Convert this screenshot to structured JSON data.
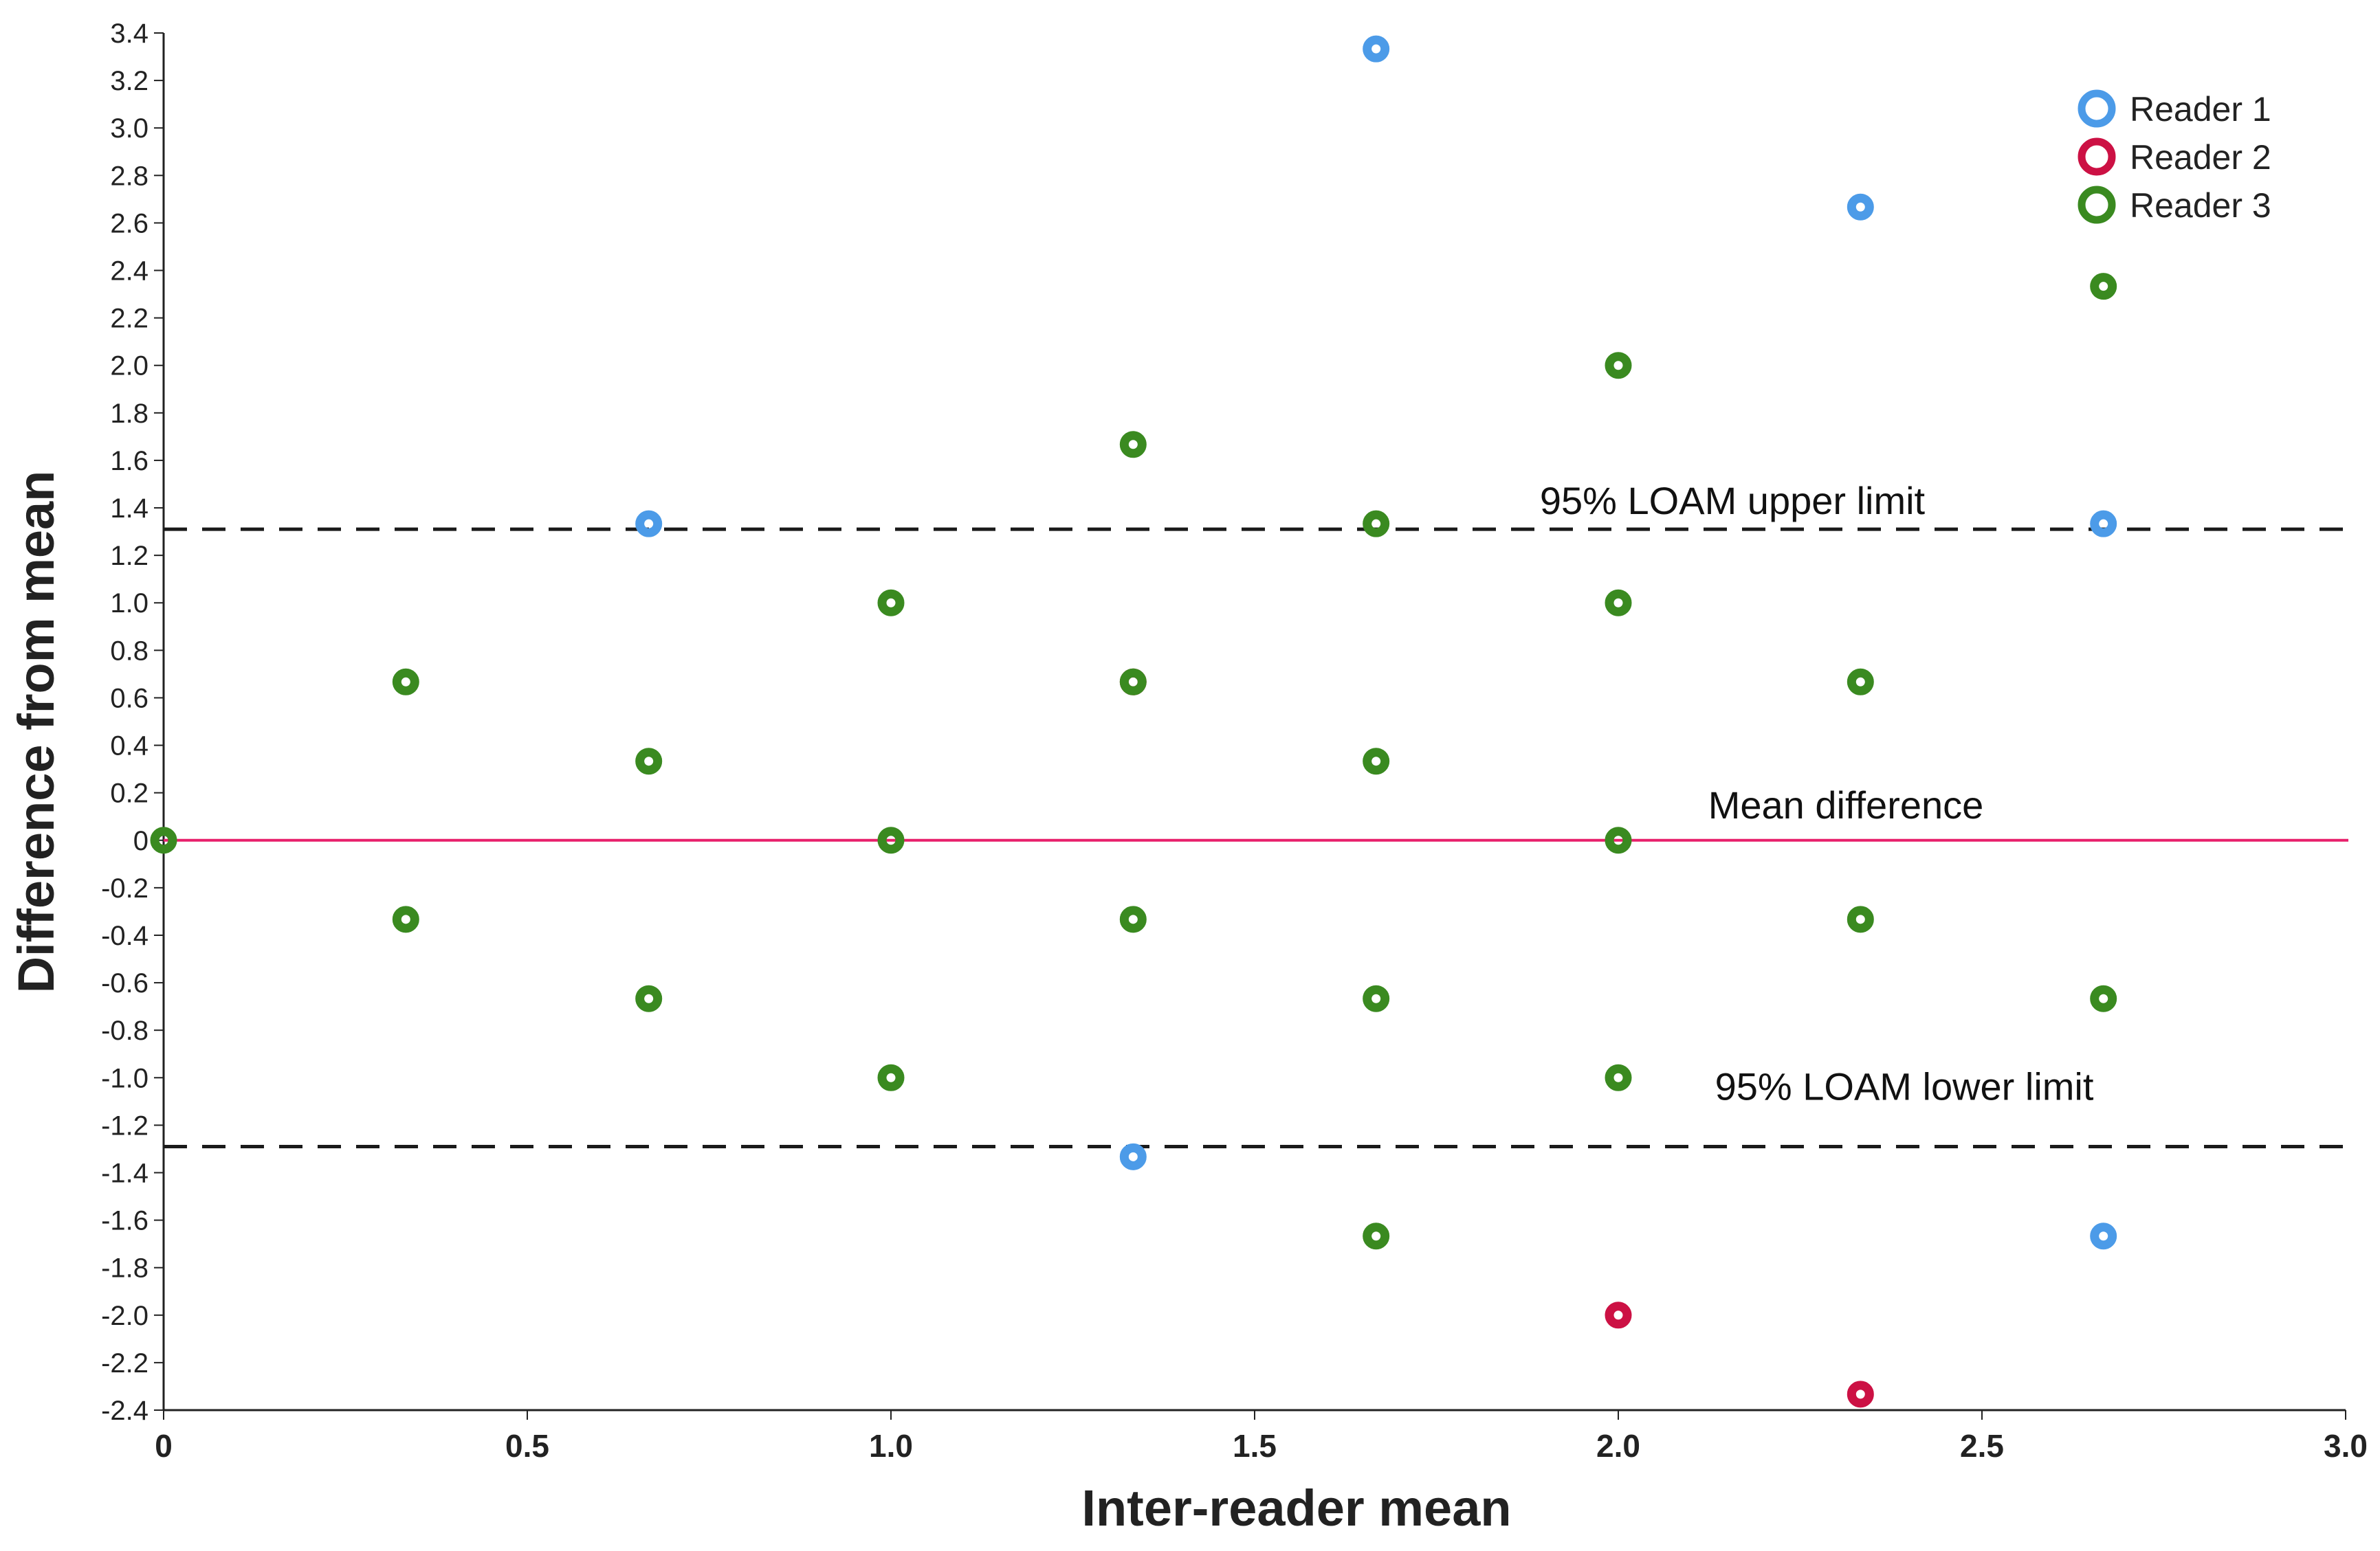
{
  "chart_data": {
    "type": "scatter",
    "title": "",
    "xlabel": "Inter-reader mean",
    "ylabel": "Difference from mean",
    "xlim": [
      0,
      3.0
    ],
    "ylim": [
      -2.4,
      3.4
    ],
    "x_ticks": [
      0,
      0.5,
      1.0,
      1.5,
      2.0,
      2.5,
      3.0
    ],
    "x_tick_labels": [
      "0",
      "0.5",
      "1.0",
      "1.5",
      "2.0",
      "2.5",
      "3.0"
    ],
    "y_ticks": [
      3.4,
      3.2,
      3.0,
      2.8,
      2.6,
      2.4,
      2.2,
      2.0,
      1.8,
      1.6,
      1.4,
      1.2,
      1.0,
      0.8,
      0.6,
      0.4,
      0.2,
      0,
      -0.2,
      -0.4,
      -0.6,
      -0.8,
      -1.0,
      -1.2,
      -1.4,
      -1.6,
      -1.8,
      -2.0,
      -2.2,
      -2.4
    ],
    "y_tick_labels": [
      "3.4",
      "3.2",
      "3.0",
      "2.8",
      "2.6",
      "2.4",
      "2.2",
      "2.0",
      "1.8",
      "1.6",
      "1.4",
      "1.2",
      "1.0",
      "0.8",
      "0.6",
      "0.4",
      "0.2",
      "0",
      "-0.2",
      "-0.4",
      "-0.6",
      "-0.8",
      "-1.0",
      "-1.2",
      "-1.4",
      "-1.6",
      "-1.8",
      "-2.0",
      "-2.2",
      "-2.4"
    ],
    "grid": false,
    "legend_position": "top-right",
    "reference_lines": [
      {
        "name": "upper-limit",
        "label": "95% LOAM upper limit",
        "y": 1.31,
        "style": "dashed",
        "color": "#1a1a1a"
      },
      {
        "name": "mean-difference",
        "label": "Mean difference",
        "y": 0.0,
        "style": "solid",
        "color": "#e8206b"
      },
      {
        "name": "lower-limit",
        "label": "95% LOAM lower limit",
        "y": -1.29,
        "style": "dashed",
        "color": "#1a1a1a"
      }
    ],
    "series": [
      {
        "name": "Reader 1",
        "color": "#4c9be8",
        "points": [
          {
            "x": 0.667,
            "y": 1.333
          },
          {
            "x": 1.667,
            "y": 3.333
          },
          {
            "x": 2.333,
            "y": 2.667
          },
          {
            "x": 2.667,
            "y": 1.333
          },
          {
            "x": 1.333,
            "y": -1.333
          },
          {
            "x": 2.667,
            "y": -1.667
          }
        ]
      },
      {
        "name": "Reader 2",
        "color": "#cc1144",
        "points": [
          {
            "x": 1.333,
            "y": 0.667
          },
          {
            "x": 2.0,
            "y": -2.0
          },
          {
            "x": 2.333,
            "y": -2.333
          }
        ]
      },
      {
        "name": "Reader 3",
        "color": "#3a8a20",
        "points": [
          {
            "x": 0,
            "y": 0
          },
          {
            "x": 0.333,
            "y": 0.667
          },
          {
            "x": 0.333,
            "y": -0.333
          },
          {
            "x": 0.667,
            "y": 0.333
          },
          {
            "x": 0.667,
            "y": -0.667
          },
          {
            "x": 1.0,
            "y": 1.0
          },
          {
            "x": 1.0,
            "y": 0
          },
          {
            "x": 1.0,
            "y": -1.0
          },
          {
            "x": 1.333,
            "y": 1.667
          },
          {
            "x": 1.333,
            "y": 0.667
          },
          {
            "x": 1.333,
            "y": -0.333
          },
          {
            "x": 1.667,
            "y": 1.333
          },
          {
            "x": 1.667,
            "y": 0.333
          },
          {
            "x": 1.667,
            "y": -0.667
          },
          {
            "x": 1.667,
            "y": -1.667
          },
          {
            "x": 2.0,
            "y": 2.0
          },
          {
            "x": 2.0,
            "y": 1.0
          },
          {
            "x": 2.0,
            "y": 0
          },
          {
            "x": 2.0,
            "y": -1.0
          },
          {
            "x": 2.333,
            "y": 0.667
          },
          {
            "x": 2.333,
            "y": -0.333
          },
          {
            "x": 2.667,
            "y": 2.333
          },
          {
            "x": 2.667,
            "y": -0.667
          }
        ]
      }
    ]
  }
}
